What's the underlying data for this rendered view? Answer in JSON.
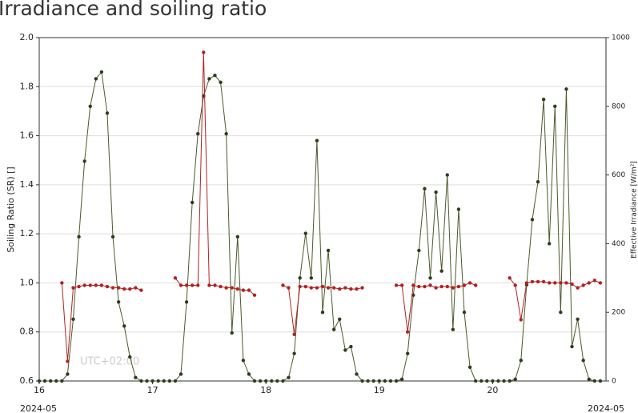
{
  "chart_data": {
    "type": "line",
    "title": "Irradiance and soiling ratio",
    "ylabel": "Soiling Ratio (SR) []",
    "y2label": "Effective Irradiance [W/m²]",
    "x_corner_labels": [
      "2024-05",
      "2024-05"
    ],
    "annotation": "UTC+02:00",
    "xlim": [
      16,
      21
    ],
    "xticks": [
      16,
      17,
      18,
      19,
      20
    ],
    "ylim": [
      0.6,
      2.0
    ],
    "yticks": [
      0.6,
      0.8,
      {
        "value": 1.0,
        "label": "1.0"
      },
      1.2,
      1.4,
      1.6,
      1.8,
      {
        "value": 2.0,
        "label": "2.0"
      }
    ],
    "y2lim": [
      0,
      1000
    ],
    "y2ticks": [
      0,
      200,
      400,
      600,
      800,
      1000
    ],
    "grid": true,
    "x": [
      16.0,
      16.05,
      16.1,
      16.15,
      16.2,
      16.25,
      16.3,
      16.35,
      16.4,
      16.45,
      16.5,
      16.55,
      16.6,
      16.65,
      16.7,
      16.75,
      16.8,
      16.85,
      16.9,
      16.95,
      17.0,
      17.05,
      17.1,
      17.15,
      17.2,
      17.25,
      17.3,
      17.35,
      17.4,
      17.45,
      17.5,
      17.55,
      17.6,
      17.65,
      17.7,
      17.75,
      17.8,
      17.85,
      17.9,
      17.95,
      18.0,
      18.05,
      18.1,
      18.15,
      18.2,
      18.25,
      18.3,
      18.35,
      18.4,
      18.45,
      18.5,
      18.55,
      18.6,
      18.65,
      18.7,
      18.75,
      18.8,
      18.85,
      18.9,
      18.95,
      19.0,
      19.05,
      19.1,
      19.15,
      19.2,
      19.25,
      19.3,
      19.35,
      19.4,
      19.45,
      19.5,
      19.55,
      19.6,
      19.65,
      19.7,
      19.75,
      19.8,
      19.85,
      19.9,
      19.95,
      20.0,
      20.05,
      20.1,
      20.15,
      20.2,
      20.25,
      20.3,
      20.35,
      20.4,
      20.45,
      20.5,
      20.55,
      20.6,
      20.65,
      20.7,
      20.75,
      20.8,
      20.85,
      20.9,
      20.95
    ],
    "series": [
      {
        "name": "Effective Irradiance",
        "axis": "y2",
        "color": "#2b3d1e",
        "line_color": "#4a5a2a",
        "values": [
          0,
          0,
          0,
          0,
          0,
          20,
          180,
          420,
          640,
          800,
          880,
          900,
          780,
          420,
          230,
          160,
          70,
          10,
          0,
          0,
          0,
          0,
          0,
          0,
          0,
          20,
          230,
          520,
          720,
          830,
          880,
          890,
          870,
          720,
          140,
          420,
          60,
          20,
          0,
          0,
          0,
          0,
          0,
          0,
          10,
          80,
          300,
          430,
          300,
          700,
          200,
          380,
          150,
          180,
          90,
          100,
          20,
          0,
          0,
          0,
          0,
          0,
          0,
          0,
          5,
          80,
          250,
          380,
          560,
          300,
          550,
          320,
          600,
          150,
          500,
          200,
          40,
          0,
          0,
          0,
          0,
          0,
          0,
          0,
          5,
          60,
          280,
          470,
          580,
          820,
          400,
          800,
          200,
          850,
          100,
          180,
          60,
          5,
          0,
          0
        ]
      },
      {
        "name": "Soiling Ratio",
        "axis": "y",
        "color": "#b22222",
        "line_color": "#b22222",
        "values": [
          null,
          null,
          null,
          null,
          1.0,
          0.68,
          0.98,
          0.985,
          0.99,
          0.99,
          0.99,
          0.99,
          0.985,
          0.98,
          0.98,
          0.975,
          0.975,
          0.98,
          0.97,
          null,
          null,
          null,
          null,
          null,
          1.02,
          0.99,
          0.99,
          0.99,
          0.99,
          1.94,
          0.99,
          0.99,
          0.985,
          0.98,
          0.98,
          0.975,
          0.97,
          0.97,
          0.95,
          null,
          null,
          null,
          null,
          0.99,
          0.98,
          0.79,
          0.985,
          0.985,
          0.98,
          0.98,
          0.985,
          0.98,
          0.98,
          0.975,
          0.98,
          0.975,
          0.975,
          0.98,
          null,
          null,
          null,
          null,
          null,
          0.99,
          0.99,
          0.8,
          0.99,
          0.985,
          0.985,
          0.99,
          0.98,
          0.985,
          0.985,
          0.98,
          0.985,
          0.99,
          1.0,
          0.99,
          null,
          null,
          null,
          null,
          null,
          1.02,
          0.99,
          0.85,
          1.0,
          1.005,
          1.005,
          1.005,
          1.0,
          1.0,
          1.0,
          1.0,
          0.995,
          0.98,
          0.99,
          1.0,
          1.01,
          1.0
        ]
      }
    ]
  }
}
